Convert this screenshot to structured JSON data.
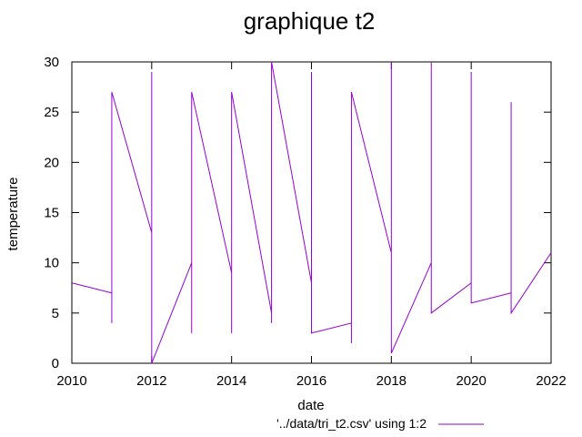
{
  "chart_data": {
    "type": "line",
    "title": "graphique t2",
    "xlabel": "date",
    "ylabel": "temperature",
    "xlim": [
      2010,
      2022
    ],
    "ylim": [
      0,
      30
    ],
    "x_ticks": [
      2010,
      2012,
      2014,
      2016,
      2018,
      2020,
      2022
    ],
    "y_ticks": [
      0,
      5,
      10,
      15,
      20,
      25,
      30
    ],
    "grid": false,
    "legend_position": "bottom",
    "series": [
      {
        "name": "'../data/tri_t2.csv' using 1:2",
        "color": "#9400d3",
        "x": [
          2010,
          2011,
          2011,
          2011,
          2012,
          2012,
          2012,
          2013,
          2013,
          2013,
          2014,
          2014,
          2014,
          2015,
          2015,
          2015,
          2016,
          2016,
          2016,
          2017,
          2017,
          2017,
          2018,
          2018,
          2018,
          2019,
          2019,
          2019,
          2020,
          2020,
          2020,
          2021,
          2021,
          2021,
          2022
        ],
        "y": [
          8,
          7,
          4,
          27,
          13,
          29,
          0,
          10,
          3,
          27,
          9,
          3,
          27,
          5,
          4,
          30,
          8,
          29,
          3,
          4,
          2,
          27,
          11,
          30,
          1,
          10,
          30,
          5,
          8,
          29,
          6,
          7,
          26,
          5,
          11
        ]
      }
    ]
  }
}
